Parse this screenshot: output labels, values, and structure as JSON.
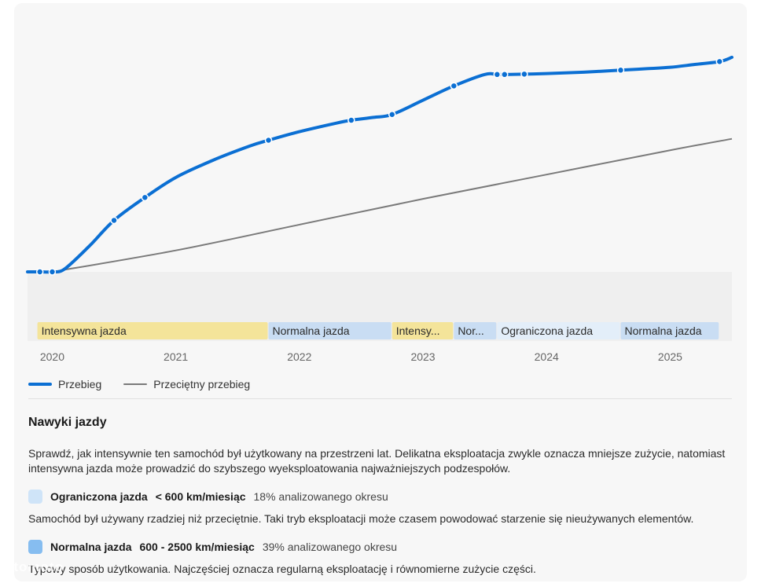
{
  "chart_data": {
    "type": "line",
    "x_unit": "year",
    "xlim": [
      2019.8,
      2025.5
    ],
    "x_ticks": [
      "2020",
      "2021",
      "2022",
      "2023",
      "2024",
      "2025"
    ],
    "series": [
      {
        "name": "Przebieg",
        "color": "#0b6fd3",
        "x": [
          2019.8,
          2019.9,
          2020.0,
          2020.1,
          2020.3,
          2020.5,
          2020.75,
          2021.0,
          2021.3,
          2021.6,
          2021.75,
          2022.0,
          2022.3,
          2022.42,
          2022.6,
          2022.75,
          2023.0,
          2023.25,
          2023.5,
          2023.6,
          2023.7,
          2024.0,
          2024.3,
          2024.6,
          2024.8,
          2025.0,
          2025.2,
          2025.4,
          2025.5
        ],
        "y": [
          0,
          0,
          0,
          1,
          9,
          18,
          26,
          33,
          39,
          44,
          46,
          49,
          52,
          53,
          54,
          55,
          60,
          65,
          69,
          69,
          69,
          69.3,
          69.8,
          70.5,
          71,
          71.5,
          72.5,
          73.5,
          75
        ],
        "markers": [
          2019.9,
          2020.0,
          2020.5,
          2020.75,
          2021.75,
          2022.42,
          2022.75,
          2023.25,
          2023.6,
          2023.66,
          2023.82,
          2024.6,
          2025.4
        ]
      },
      {
        "name": "Przeciętny przebieg",
        "color": "#7a7a7a",
        "x": [
          2020.0,
          2021.0,
          2022.0,
          2023.0,
          2024.0,
          2025.0,
          2025.5
        ],
        "y": [
          0,
          7.5,
          16.5,
          25.5,
          34,
          42.5,
          46.5
        ]
      }
    ],
    "ylim": [
      0,
      78
    ],
    "grid": false,
    "legend_position": "bottom-left",
    "driving_periods": [
      {
        "label": "Intensywna jazda",
        "start": 2019.88,
        "end": 2021.75,
        "color": "#f4e49a"
      },
      {
        "label": "Normalna jazda",
        "start": 2021.75,
        "end": 2022.75,
        "color": "#c9ddf3"
      },
      {
        "label": "Intensy...",
        "start": 2022.75,
        "end": 2023.25,
        "color": "#f4e49a"
      },
      {
        "label": "Nor...",
        "start": 2023.25,
        "end": 2023.6,
        "color": "#c9ddf3"
      },
      {
        "label": "Ograniczona jazda",
        "start": 2023.6,
        "end": 2024.6,
        "color": "#e3eef9"
      },
      {
        "label": "Normalna jazda",
        "start": 2024.6,
        "end": 2025.4,
        "color": "#c9ddf3"
      }
    ]
  },
  "legend": {
    "main_label": "Przebieg",
    "avg_label": "Przeciętny przebieg"
  },
  "habits": {
    "title": "Nawyki jazdy",
    "description": "Sprawdź, jak intensywnie ten samochód był użytkowany na przestrzeni lat. Delikatna eksploatacja zwykle oznacza mniejsze zużycie, natomiast intensywna jazda może prowadzić do szybszego wyeksploatowania najważniejszych podzespołów.",
    "categories": [
      {
        "name": "Ograniczona jazda",
        "range": "< 600 km/miesiąc",
        "percent": "18% analizowanego okresu",
        "description": "Samochód był używany rzadziej niż przeciętnie. Taki tryb eksploatacji może czasem powodować starzenie się nieużywanych elementów.",
        "color": "#cfe4f8"
      },
      {
        "name": "Normalna jazda",
        "range": "600 - 2500 km/miesiąc",
        "percent": "39% analizowanego okresu",
        "description": "Typowy sposób użytkowania. Najczęściej oznacza regularną eksploatację i równomierne zużycie części.",
        "color": "#86bdf0"
      }
    ]
  },
  "watermark": "otomoto"
}
